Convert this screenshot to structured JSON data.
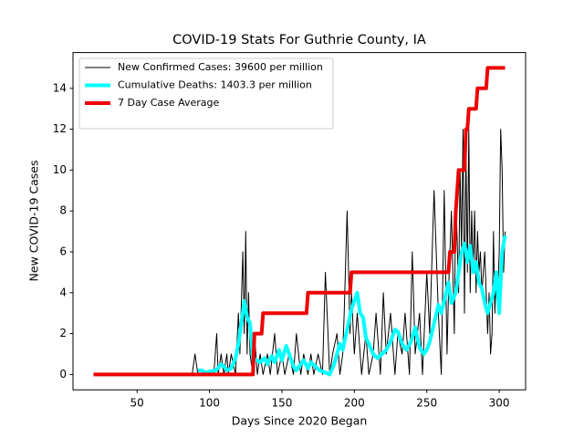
{
  "chart_data": {
    "type": "line",
    "title": "COVID-19 Stats For Guthrie County, IA",
    "x_label": "Days Since 2020 Began",
    "y_label": "New COVID-19 Cases",
    "xlim": [
      5.8,
      318.2
    ],
    "ylim": [
      -0.75,
      15.75
    ],
    "xticks": [
      50,
      100,
      150,
      200,
      250,
      300
    ],
    "yticks": [
      0,
      2,
      4,
      6,
      8,
      10,
      12,
      14
    ],
    "legend": "upper left",
    "series": [
      {
        "name": "New Confirmed Cases: 39600 per million",
        "color": "#000000",
        "width": 1,
        "x": [
          20,
          88,
          90,
          92,
          95,
          100,
          103,
          105,
          106,
          108,
          110,
          112,
          113,
          115,
          118,
          120,
          121,
          123,
          124,
          125,
          126,
          127,
          128,
          130,
          131,
          133,
          135,
          137,
          140,
          142,
          145,
          147,
          150,
          152,
          155,
          158,
          160,
          163,
          165,
          168,
          170,
          172,
          175,
          178,
          180,
          183,
          185,
          188,
          190,
          192,
          193,
          195,
          197,
          198,
          200,
          202,
          205,
          208,
          210,
          213,
          215,
          218,
          220,
          222,
          225,
          228,
          230,
          233,
          235,
          238,
          240,
          242,
          245,
          247,
          250,
          252,
          255,
          258,
          260,
          262,
          264,
          265,
          267,
          269,
          270,
          272,
          273,
          274,
          275,
          276,
          277,
          278,
          279,
          280,
          281,
          282,
          283,
          284,
          285,
          286,
          287,
          288,
          290,
          292,
          293,
          294,
          295,
          296,
          297,
          298,
          299,
          300,
          301,
          302,
          303,
          304
        ],
        "values": [
          0,
          0,
          1,
          0,
          0,
          0,
          0,
          2,
          0,
          1,
          0,
          1,
          0,
          1,
          0,
          3,
          1,
          6,
          2,
          7,
          1,
          4,
          1,
          0,
          2,
          0,
          1,
          0,
          1,
          0,
          2,
          0,
          1,
          0,
          1,
          0,
          2,
          0,
          1,
          0,
          1,
          0,
          1,
          0,
          5,
          0,
          1,
          2,
          0,
          1,
          3,
          8,
          2,
          4,
          1,
          3,
          0,
          2,
          0,
          1,
          3,
          0,
          4,
          1,
          3,
          0,
          2,
          1,
          3,
          0,
          6,
          1,
          3,
          0,
          5,
          2,
          9,
          3,
          0,
          9,
          1,
          4,
          8,
          2,
          9,
          4,
          10,
          6,
          12,
          3,
          11,
          5,
          12,
          4,
          8,
          5,
          8,
          4,
          7,
          5,
          6,
          4,
          6,
          2,
          4,
          1,
          2,
          7,
          3,
          5,
          4,
          6,
          12,
          10,
          5,
          7
        ]
      },
      {
        "name": "Cumulative Deaths: 1403.3 per million",
        "color": "#00ffff",
        "width": 4,
        "x": [
          92,
          95,
          97,
          104,
          106,
          108,
          110,
          112,
          115,
          118,
          120,
          122,
          124,
          126,
          128,
          130,
          135,
          138,
          140,
          143,
          145,
          148,
          150,
          153,
          155,
          158,
          160,
          163,
          165,
          168,
          170,
          173,
          176,
          180,
          183,
          186,
          188,
          190,
          192,
          195,
          198,
          200,
          202,
          204,
          206,
          208,
          210,
          213,
          216,
          219,
          222,
          225,
          228,
          230,
          233,
          236,
          239,
          242,
          245,
          248,
          250,
          252,
          255,
          258,
          260,
          262,
          265,
          267,
          270,
          272,
          274,
          276,
          278,
          280,
          282,
          284,
          286,
          288,
          290,
          292,
          294,
          296,
          298,
          300,
          302,
          304
        ],
        "values": [
          0.2,
          0.2,
          0.1,
          0.2,
          0.3,
          0.5,
          0.4,
          0.2,
          0.3,
          0.8,
          1.5,
          2.5,
          3.6,
          2.8,
          2.5,
          0.8,
          0.6,
          0.8,
          0.5,
          0.9,
          0.6,
          1.2,
          0.7,
          1.4,
          1.0,
          0.4,
          0.2,
          0.5,
          0.7,
          0.3,
          0.6,
          0.4,
          0.2,
          0.1,
          0.0,
          0.5,
          1.0,
          1.5,
          1.2,
          2.2,
          3.2,
          3.6,
          4.0,
          3.0,
          2.8,
          1.8,
          1.5,
          1.0,
          0.8,
          1.0,
          1.2,
          1.6,
          2.2,
          2.1,
          1.5,
          1.2,
          1.6,
          2.3,
          1.3,
          1.0,
          1.2,
          1.6,
          2.5,
          3.4,
          3.0,
          3.6,
          4.5,
          3.5,
          4.0,
          5.0,
          6.0,
          6.4,
          5.5,
          6.3,
          5.0,
          5.5,
          4.5,
          4.2,
          3.5,
          3.0,
          3.5,
          4.0,
          5.0,
          3.0,
          6.0,
          6.8
        ]
      },
      {
        "name": "7 Day Case Average",
        "color": "#ee0000",
        "width": 4,
        "x": [
          20,
          130,
          131,
          136,
          137,
          167,
          168,
          197,
          198,
          265,
          266,
          269,
          270,
          271,
          272,
          276,
          277,
          278,
          279,
          283,
          284,
          285,
          291,
          292,
          304
        ],
        "values": [
          0,
          0,
          2,
          2,
          3,
          3,
          4,
          4,
          5,
          5,
          6,
          6,
          8,
          9,
          10,
          10,
          12,
          12,
          13,
          13,
          13,
          14,
          14,
          15,
          15
        ]
      }
    ]
  }
}
